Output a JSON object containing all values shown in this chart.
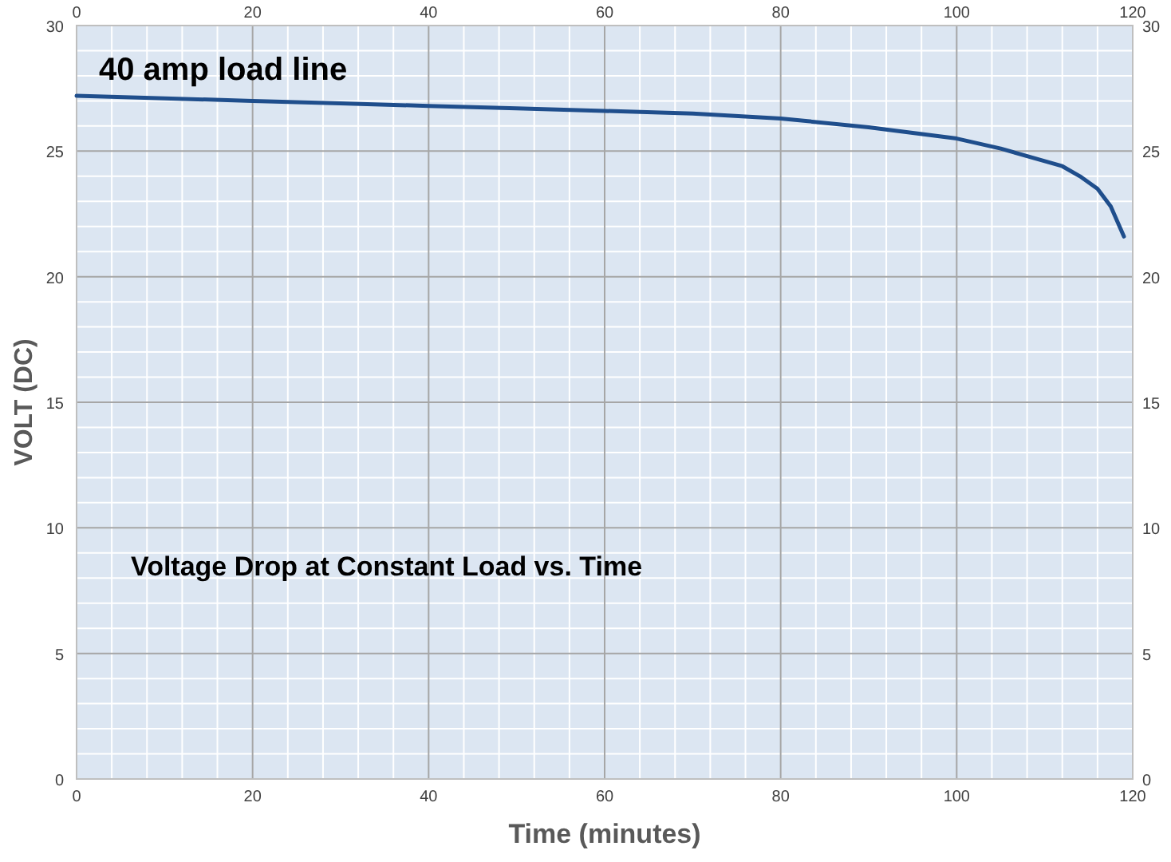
{
  "chart_data": {
    "type": "line",
    "xlabel": "Time (minutes)",
    "ylabel": "VOLT (DC)",
    "annotations": [
      "40 amp load line",
      "Voltage Drop at Constant Load vs. Time"
    ],
    "x": [
      0,
      10,
      20,
      30,
      40,
      50,
      60,
      70,
      80,
      90,
      100,
      105,
      110,
      112,
      114,
      116,
      117.5,
      119
    ],
    "series": [
      {
        "color": "#1f4e8c",
        "values": [
          27.2,
          27.1,
          27.0,
          26.9,
          26.8,
          26.7,
          26.6,
          26.5,
          26.3,
          25.95,
          25.5,
          25.1,
          24.6,
          24.4,
          24.0,
          23.5,
          22.8,
          21.6
        ]
      }
    ],
    "xlim": [
      0,
      120
    ],
    "xticks": [
      0,
      20,
      40,
      60,
      80,
      100,
      120
    ],
    "x2lim": [
      0,
      120
    ],
    "x2ticks": [
      0,
      20,
      40,
      60,
      80,
      100,
      120
    ],
    "ylim": [
      0,
      30
    ],
    "yticks": [
      0,
      5,
      10,
      15,
      20,
      25,
      30
    ],
    "y2lim": [
      0,
      30
    ],
    "y2ticks": [
      0,
      5,
      10,
      15,
      20,
      25,
      30
    ],
    "grid": true,
    "marker": "none",
    "line_style": "solid"
  }
}
